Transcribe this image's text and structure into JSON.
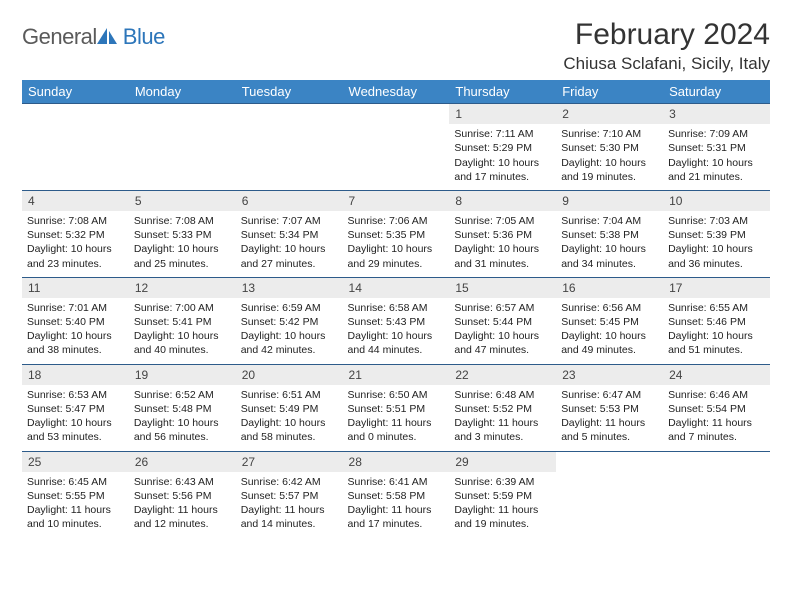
{
  "brand": {
    "part1": "General",
    "part2": "Blue"
  },
  "title": "February 2024",
  "location": "Chiusa Sclafani, Sicily, Italy",
  "colors": {
    "header_bg": "#3b84c4",
    "header_text": "#ffffff",
    "border": "#2d5b8a",
    "daynum_bg": "#ececec",
    "text": "#222222",
    "brand_grey": "#5a5a5a",
    "brand_blue": "#2d76ba"
  },
  "weekdays": [
    "Sunday",
    "Monday",
    "Tuesday",
    "Wednesday",
    "Thursday",
    "Friday",
    "Saturday"
  ],
  "weeks": [
    [
      null,
      null,
      null,
      null,
      {
        "n": "1",
        "sr": "Sunrise: 7:11 AM",
        "ss": "Sunset: 5:29 PM",
        "dl": "Daylight: 10 hours and 17 minutes."
      },
      {
        "n": "2",
        "sr": "Sunrise: 7:10 AM",
        "ss": "Sunset: 5:30 PM",
        "dl": "Daylight: 10 hours and 19 minutes."
      },
      {
        "n": "3",
        "sr": "Sunrise: 7:09 AM",
        "ss": "Sunset: 5:31 PM",
        "dl": "Daylight: 10 hours and 21 minutes."
      }
    ],
    [
      {
        "n": "4",
        "sr": "Sunrise: 7:08 AM",
        "ss": "Sunset: 5:32 PM",
        "dl": "Daylight: 10 hours and 23 minutes."
      },
      {
        "n": "5",
        "sr": "Sunrise: 7:08 AM",
        "ss": "Sunset: 5:33 PM",
        "dl": "Daylight: 10 hours and 25 minutes."
      },
      {
        "n": "6",
        "sr": "Sunrise: 7:07 AM",
        "ss": "Sunset: 5:34 PM",
        "dl": "Daylight: 10 hours and 27 minutes."
      },
      {
        "n": "7",
        "sr": "Sunrise: 7:06 AM",
        "ss": "Sunset: 5:35 PM",
        "dl": "Daylight: 10 hours and 29 minutes."
      },
      {
        "n": "8",
        "sr": "Sunrise: 7:05 AM",
        "ss": "Sunset: 5:36 PM",
        "dl": "Daylight: 10 hours and 31 minutes."
      },
      {
        "n": "9",
        "sr": "Sunrise: 7:04 AM",
        "ss": "Sunset: 5:38 PM",
        "dl": "Daylight: 10 hours and 34 minutes."
      },
      {
        "n": "10",
        "sr": "Sunrise: 7:03 AM",
        "ss": "Sunset: 5:39 PM",
        "dl": "Daylight: 10 hours and 36 minutes."
      }
    ],
    [
      {
        "n": "11",
        "sr": "Sunrise: 7:01 AM",
        "ss": "Sunset: 5:40 PM",
        "dl": "Daylight: 10 hours and 38 minutes."
      },
      {
        "n": "12",
        "sr": "Sunrise: 7:00 AM",
        "ss": "Sunset: 5:41 PM",
        "dl": "Daylight: 10 hours and 40 minutes."
      },
      {
        "n": "13",
        "sr": "Sunrise: 6:59 AM",
        "ss": "Sunset: 5:42 PM",
        "dl": "Daylight: 10 hours and 42 minutes."
      },
      {
        "n": "14",
        "sr": "Sunrise: 6:58 AM",
        "ss": "Sunset: 5:43 PM",
        "dl": "Daylight: 10 hours and 44 minutes."
      },
      {
        "n": "15",
        "sr": "Sunrise: 6:57 AM",
        "ss": "Sunset: 5:44 PM",
        "dl": "Daylight: 10 hours and 47 minutes."
      },
      {
        "n": "16",
        "sr": "Sunrise: 6:56 AM",
        "ss": "Sunset: 5:45 PM",
        "dl": "Daylight: 10 hours and 49 minutes."
      },
      {
        "n": "17",
        "sr": "Sunrise: 6:55 AM",
        "ss": "Sunset: 5:46 PM",
        "dl": "Daylight: 10 hours and 51 minutes."
      }
    ],
    [
      {
        "n": "18",
        "sr": "Sunrise: 6:53 AM",
        "ss": "Sunset: 5:47 PM",
        "dl": "Daylight: 10 hours and 53 minutes."
      },
      {
        "n": "19",
        "sr": "Sunrise: 6:52 AM",
        "ss": "Sunset: 5:48 PM",
        "dl": "Daylight: 10 hours and 56 minutes."
      },
      {
        "n": "20",
        "sr": "Sunrise: 6:51 AM",
        "ss": "Sunset: 5:49 PM",
        "dl": "Daylight: 10 hours and 58 minutes."
      },
      {
        "n": "21",
        "sr": "Sunrise: 6:50 AM",
        "ss": "Sunset: 5:51 PM",
        "dl": "Daylight: 11 hours and 0 minutes."
      },
      {
        "n": "22",
        "sr": "Sunrise: 6:48 AM",
        "ss": "Sunset: 5:52 PM",
        "dl": "Daylight: 11 hours and 3 minutes."
      },
      {
        "n": "23",
        "sr": "Sunrise: 6:47 AM",
        "ss": "Sunset: 5:53 PM",
        "dl": "Daylight: 11 hours and 5 minutes."
      },
      {
        "n": "24",
        "sr": "Sunrise: 6:46 AM",
        "ss": "Sunset: 5:54 PM",
        "dl": "Daylight: 11 hours and 7 minutes."
      }
    ],
    [
      {
        "n": "25",
        "sr": "Sunrise: 6:45 AM",
        "ss": "Sunset: 5:55 PM",
        "dl": "Daylight: 11 hours and 10 minutes."
      },
      {
        "n": "26",
        "sr": "Sunrise: 6:43 AM",
        "ss": "Sunset: 5:56 PM",
        "dl": "Daylight: 11 hours and 12 minutes."
      },
      {
        "n": "27",
        "sr": "Sunrise: 6:42 AM",
        "ss": "Sunset: 5:57 PM",
        "dl": "Daylight: 11 hours and 14 minutes."
      },
      {
        "n": "28",
        "sr": "Sunrise: 6:41 AM",
        "ss": "Sunset: 5:58 PM",
        "dl": "Daylight: 11 hours and 17 minutes."
      },
      {
        "n": "29",
        "sr": "Sunrise: 6:39 AM",
        "ss": "Sunset: 5:59 PM",
        "dl": "Daylight: 11 hours and 19 minutes."
      },
      null,
      null
    ]
  ]
}
